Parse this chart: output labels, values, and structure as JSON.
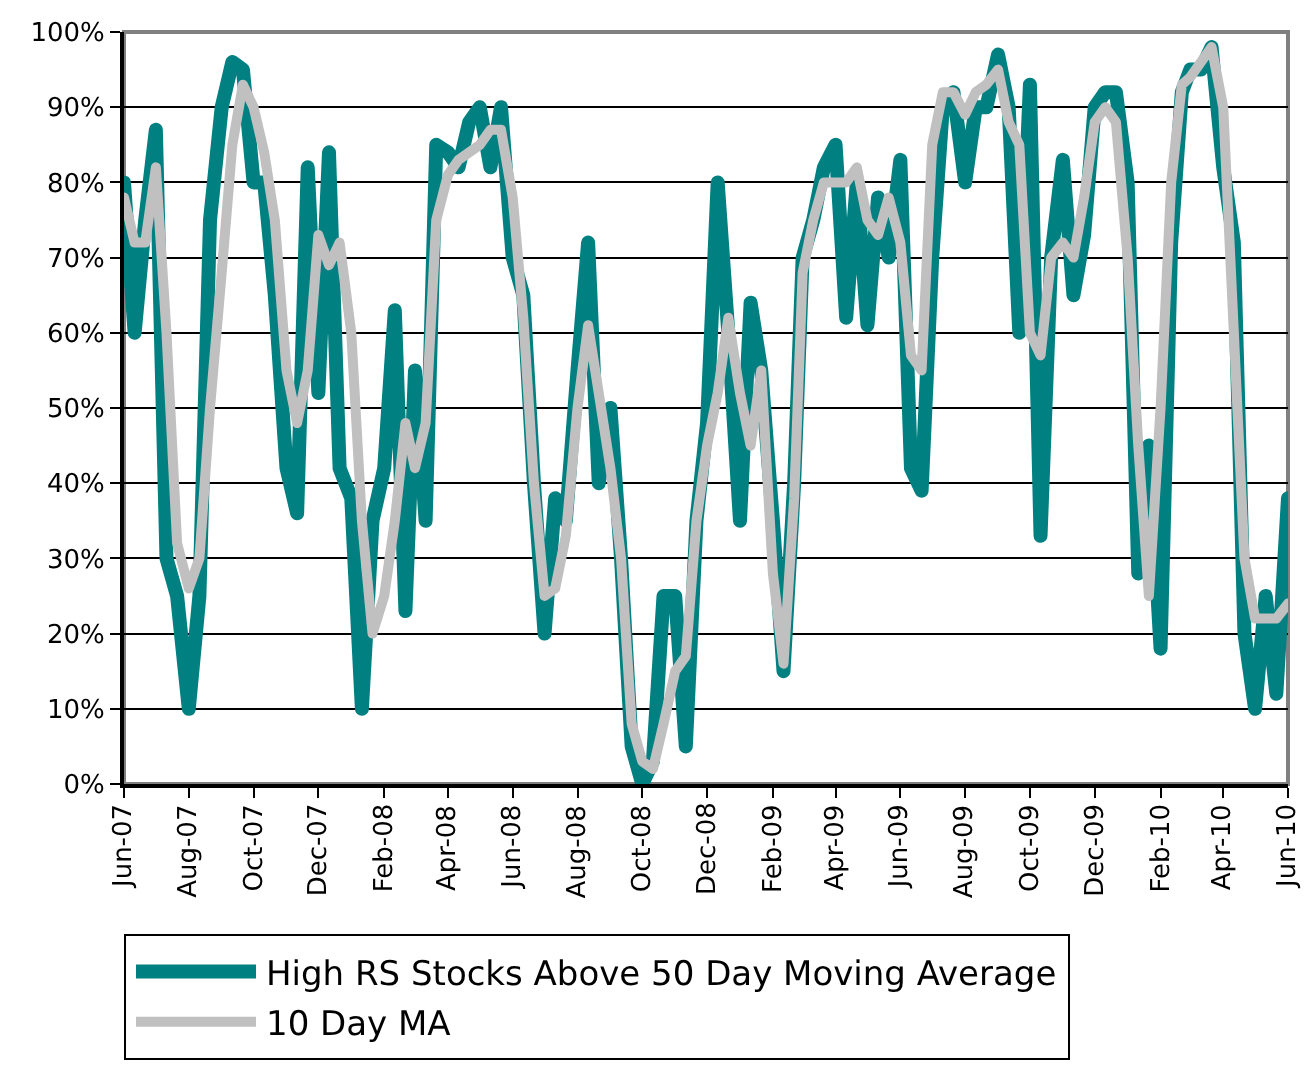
{
  "chart_data": {
    "type": "line",
    "x": [
      "2007-06-01",
      "2007-06-11",
      "2007-06-21",
      "2007-07-01",
      "2007-07-11",
      "2007-07-21",
      "2007-08-01",
      "2007-08-11",
      "2007-08-21",
      "2007-09-01",
      "2007-09-11",
      "2007-09-21",
      "2007-10-01",
      "2007-10-11",
      "2007-10-21",
      "2007-11-01",
      "2007-11-11",
      "2007-11-21",
      "2007-12-01",
      "2007-12-11",
      "2007-12-21",
      "2008-01-01",
      "2008-01-11",
      "2008-01-21",
      "2008-02-01",
      "2008-02-11",
      "2008-02-21",
      "2008-03-01",
      "2008-03-11",
      "2008-03-21",
      "2008-04-01",
      "2008-04-11",
      "2008-04-21",
      "2008-05-01",
      "2008-05-11",
      "2008-05-21",
      "2008-06-01",
      "2008-06-11",
      "2008-06-21",
      "2008-07-01",
      "2008-07-11",
      "2008-07-21",
      "2008-08-01",
      "2008-08-11",
      "2008-08-21",
      "2008-09-01",
      "2008-09-11",
      "2008-09-21",
      "2008-10-01",
      "2008-10-11",
      "2008-10-21",
      "2008-11-01",
      "2008-11-11",
      "2008-11-21",
      "2008-12-01",
      "2008-12-11",
      "2008-12-21",
      "2009-01-01",
      "2009-01-11",
      "2009-01-21",
      "2009-02-01",
      "2009-02-11",
      "2009-02-21",
      "2009-03-01",
      "2009-03-11",
      "2009-03-21",
      "2009-04-01",
      "2009-04-11",
      "2009-04-21",
      "2009-05-01",
      "2009-05-11",
      "2009-05-21",
      "2009-06-01",
      "2009-06-11",
      "2009-06-21",
      "2009-07-01",
      "2009-07-11",
      "2009-07-21",
      "2009-08-01",
      "2009-08-11",
      "2009-08-21",
      "2009-09-01",
      "2009-09-11",
      "2009-09-21",
      "2009-10-01",
      "2009-10-11",
      "2009-10-21",
      "2009-11-01",
      "2009-11-11",
      "2009-11-21",
      "2009-12-01",
      "2009-12-11",
      "2009-12-21",
      "2010-01-01",
      "2010-01-11",
      "2010-01-21",
      "2010-02-01",
      "2010-02-11",
      "2010-02-21",
      "2010-03-01",
      "2010-03-11",
      "2010-03-21",
      "2010-04-01",
      "2010-04-11",
      "2010-04-21",
      "2010-05-01",
      "2010-05-11",
      "2010-05-21",
      "2010-06-01"
    ],
    "series": [
      {
        "name": "High RS Stocks Above 50 Day Moving Average",
        "color": "#008080",
        "values": [
          80,
          60,
          75,
          87,
          30,
          25,
          10,
          25,
          75,
          90,
          96,
          95,
          80,
          80,
          65,
          42,
          36,
          82,
          52,
          84,
          42,
          38,
          10,
          35,
          42,
          63,
          23,
          55,
          35,
          85,
          84,
          82,
          88,
          90,
          82,
          90,
          70,
          65,
          40,
          20,
          38,
          35,
          55,
          72,
          40,
          50,
          30,
          5,
          0,
          3,
          25,
          25,
          5,
          35,
          48,
          80,
          60,
          35,
          64,
          55,
          35,
          15,
          40,
          70,
          75,
          82,
          85,
          62,
          80,
          61,
          78,
          70,
          83,
          42,
          39,
          70,
          90,
          92,
          80,
          90,
          90,
          97,
          90,
          60,
          93,
          33,
          70,
          83,
          65,
          73,
          90,
          92,
          92,
          80,
          28,
          45,
          18,
          72,
          92,
          95,
          95,
          98,
          82,
          72,
          20,
          10,
          25,
          12,
          38
        ]
      },
      {
        "name": "10 Day MA",
        "color": "#c0c0c0",
        "values": [
          78,
          72,
          72,
          82,
          60,
          32,
          26,
          30,
          50,
          68,
          85,
          93,
          90,
          84,
          75,
          55,
          48,
          55,
          73,
          69,
          72,
          60,
          35,
          20,
          25,
          35,
          48,
          42,
          48,
          75,
          81,
          83,
          84,
          85,
          87,
          87,
          78,
          62,
          40,
          25,
          26,
          33,
          50,
          61,
          52,
          42,
          30,
          8,
          3,
          2,
          8,
          15,
          17,
          35,
          45,
          52,
          62,
          52,
          45,
          55,
          28,
          16,
          38,
          68,
          75,
          80,
          80,
          80,
          82,
          75,
          73,
          78,
          72,
          57,
          55,
          85,
          92,
          92,
          89,
          92,
          93,
          95,
          88,
          85,
          60,
          57,
          70,
          72,
          70,
          78,
          88,
          90,
          88,
          70,
          45,
          25,
          50,
          80,
          93,
          94,
          96,
          98,
          90,
          60,
          30,
          22,
          22,
          22,
          24
        ]
      }
    ],
    "xlim": [
      "2007-06-01",
      "2010-06-01"
    ],
    "xticks": [
      {
        "value": "2007-06-01",
        "label": "Jun-07"
      },
      {
        "value": "2007-08-01",
        "label": "Aug-07"
      },
      {
        "value": "2007-10-01",
        "label": "Oct-07"
      },
      {
        "value": "2007-12-01",
        "label": "Dec-07"
      },
      {
        "value": "2008-02-01",
        "label": "Feb-08"
      },
      {
        "value": "2008-04-01",
        "label": "Apr-08"
      },
      {
        "value": "2008-06-01",
        "label": "Jun-08"
      },
      {
        "value": "2008-08-01",
        "label": "Aug-08"
      },
      {
        "value": "2008-10-01",
        "label": "Oct-08"
      },
      {
        "value": "2008-12-01",
        "label": "Dec-08"
      },
      {
        "value": "2009-02-01",
        "label": "Feb-09"
      },
      {
        "value": "2009-04-01",
        "label": "Apr-09"
      },
      {
        "value": "2009-06-01",
        "label": "Jun-09"
      },
      {
        "value": "2009-08-01",
        "label": "Aug-09"
      },
      {
        "value": "2009-10-01",
        "label": "Oct-09"
      },
      {
        "value": "2009-12-01",
        "label": "Dec-09"
      },
      {
        "value": "2010-02-01",
        "label": "Feb-10"
      },
      {
        "value": "2010-04-01",
        "label": "Apr-10"
      },
      {
        "value": "2010-06-01",
        "label": "Jun-10"
      }
    ],
    "ylim": [
      0,
      100
    ],
    "yticks": [
      {
        "value": 0,
        "label": "0%"
      },
      {
        "value": 10,
        "label": "10%"
      },
      {
        "value": 20,
        "label": "20%"
      },
      {
        "value": 30,
        "label": "30%"
      },
      {
        "value": 40,
        "label": "40%"
      },
      {
        "value": 50,
        "label": "50%"
      },
      {
        "value": 60,
        "label": "60%"
      },
      {
        "value": 70,
        "label": "70%"
      },
      {
        "value": 80,
        "label": "80%"
      },
      {
        "value": 90,
        "label": "90%"
      },
      {
        "value": 100,
        "label": "100%"
      }
    ],
    "grid": "y",
    "legend": "bottom",
    "marker": "none",
    "line_style": "solid"
  }
}
